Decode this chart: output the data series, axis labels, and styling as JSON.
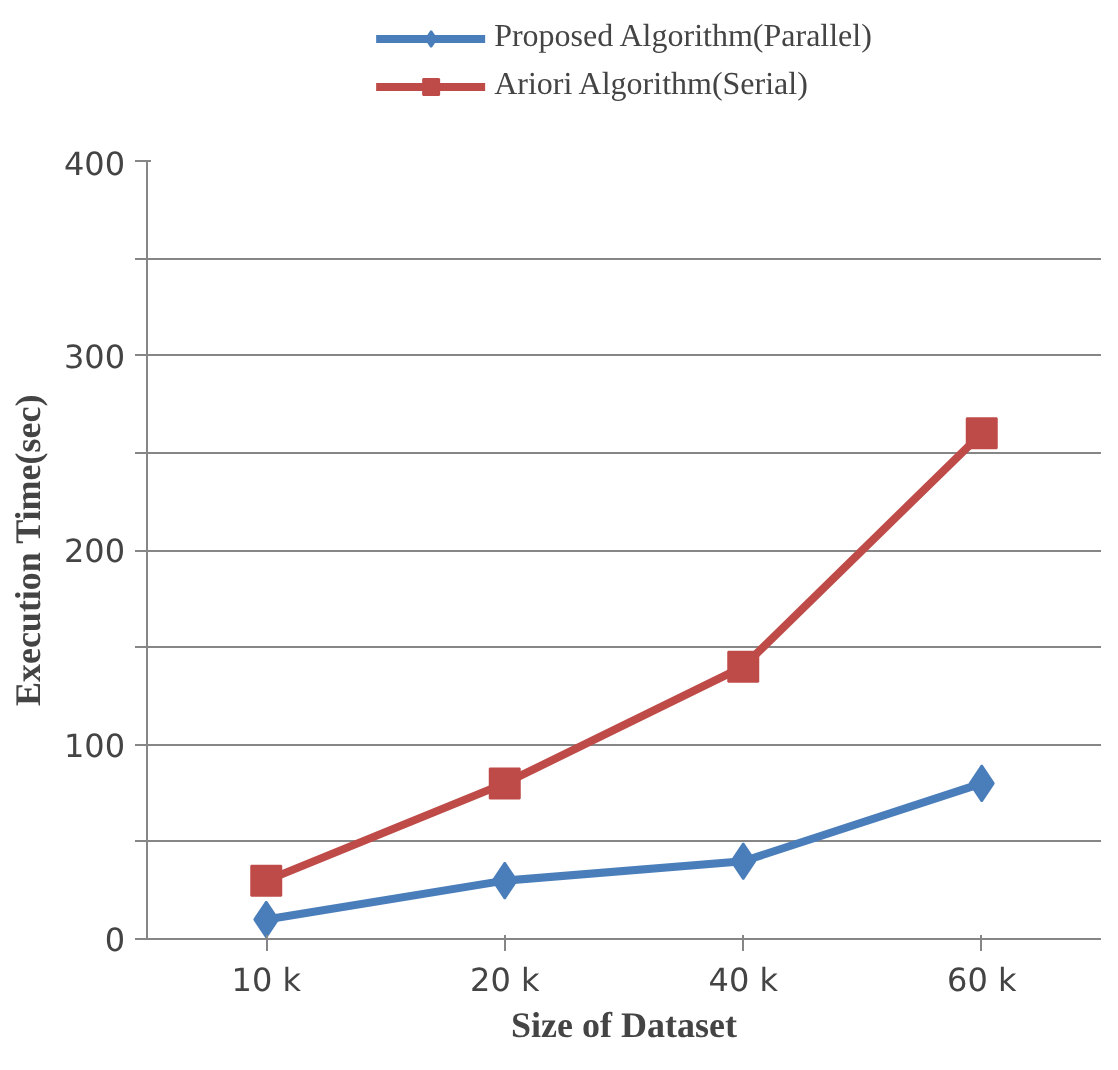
{
  "chart_data": {
    "type": "line",
    "xlabel": "Size of Dataset",
    "ylabel": "Execution Time(sec)",
    "categories": [
      "10 k",
      "20 k",
      "40 k",
      "60 k"
    ],
    "series": [
      {
        "name": "Proposed Algorithm(Parallel)",
        "color": "#4a7ebb",
        "marker": "diamond",
        "values": [
          10,
          30,
          40,
          80
        ]
      },
      {
        "name": "Ariori Algorithm(Serial)",
        "color": "#be4b48",
        "marker": "square",
        "values": [
          30,
          80,
          140,
          260
        ]
      }
    ],
    "ylim": [
      0,
      400
    ],
    "yticks": [
      0,
      {
        "value": 50,
        "label": null
      },
      100,
      {
        "value": 150,
        "label": null
      },
      200,
      {
        "value": 250,
        "label": null
      },
      300,
      {
        "value": 350,
        "label": null
      },
      400
    ],
    "grid": "y",
    "legend": "top",
    "line_style": "solid"
  }
}
